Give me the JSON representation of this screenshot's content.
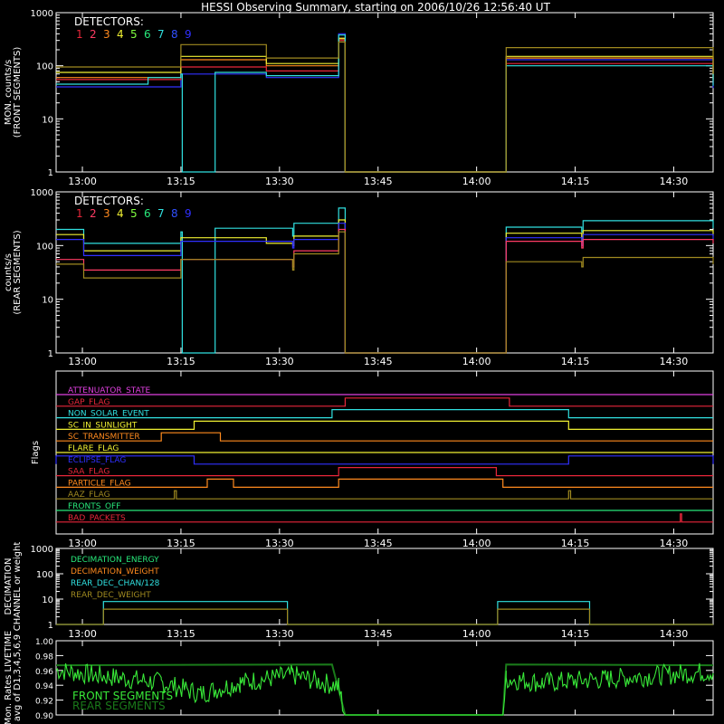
{
  "title": "HESSI Observing Summary, starting on 2006/10/26 12:56:40 UT",
  "colors": {
    "det1": "#e8263a",
    "det2": "#ff3c64",
    "det3": "#ff8a1e",
    "det4": "#f0f032",
    "det5": "#80ff40",
    "det6": "#28e87a",
    "det7": "#30e0e0",
    "det8": "#3050ff",
    "det9": "#3030ff",
    "olive": "#a08a20",
    "magenta": "#e040e0",
    "fuzz": "#38e838",
    "rear": "#1a7a1a"
  },
  "x_ticks": [
    "13:00",
    "13:15",
    "13:30",
    "13:45",
    "14:00",
    "14:15",
    "14:30"
  ],
  "chart_data": [
    {
      "type": "line",
      "ylabel": [
        "MON. counts/s",
        "(FRONT SEGMENTS)"
      ],
      "yscale": "log",
      "ylim": [
        1,
        1000
      ],
      "y_ticks": [
        "1000",
        "100",
        "10",
        "1"
      ],
      "legend_title": "DETECTORS:",
      "legend_digits": [
        "1",
        "2",
        "3",
        "4",
        "5",
        "6",
        "7",
        "8",
        "9"
      ],
      "series": [
        {
          "name": "9",
          "color_key": "det9",
          "x": [
            "12:56",
            "13:15",
            "13:28",
            "13:39",
            "13:40",
            "14:04",
            "14:04.5",
            "14:36"
          ],
          "y": [
            40,
            70,
            60,
            400,
            1,
            1,
            130,
            38
          ]
        },
        {
          "name": "1",
          "color_key": "det1",
          "x": [
            "12:56",
            "13:15",
            "13:28",
            "13:39",
            "13:40",
            "14:04",
            "14:04.5",
            "14:36"
          ],
          "y": [
            55,
            95,
            80,
            300,
            1,
            1,
            110,
            45
          ]
        },
        {
          "name": "3",
          "color_key": "det3",
          "x": [
            "12:56",
            "13:15",
            "13:28",
            "13:39",
            "13:40",
            "14:04",
            "14:04.5",
            "14:36"
          ],
          "y": [
            60,
            130,
            100,
            320,
            1,
            1,
            140,
            50
          ]
        },
        {
          "name": "4",
          "color_key": "det4",
          "x": [
            "12:56",
            "13:15",
            "13:28",
            "13:39",
            "13:40",
            "14:04",
            "14:04.5",
            "14:36"
          ],
          "y": [
            75,
            150,
            110,
            330,
            1,
            1,
            150,
            55
          ]
        },
        {
          "name": "7",
          "color_key": "det7",
          "x": [
            "12:56",
            "13:10",
            "13:15",
            "13:15.2",
            "13:20",
            "13:20.2",
            "13:28",
            "13:39",
            "13:40",
            "14:04",
            "14:04.5",
            "14:36"
          ],
          "y": [
            45,
            60,
            70,
            1,
            1,
            75,
            65,
            380,
            1,
            1,
            100,
            42
          ]
        },
        {
          "name": "olive",
          "color_key": "olive",
          "x": [
            "12:56",
            "13:15",
            "13:28",
            "13:39",
            "13:40",
            "14:04",
            "14:04.5",
            "14:36"
          ],
          "y": [
            95,
            250,
            140,
            280,
            1,
            1,
            220,
            70
          ]
        }
      ]
    },
    {
      "type": "line",
      "ylabel": [
        "counts/s",
        "(REAR SEGMENTS)"
      ],
      "yscale": "log",
      "ylim": [
        1,
        1000
      ],
      "y_ticks": [
        "1000",
        "100",
        "10",
        "1"
      ],
      "legend_title": "DETECTORS:",
      "legend_digits": [
        "1",
        "2",
        "3",
        "4",
        "5",
        "6",
        "7",
        "8",
        "9"
      ],
      "series": [
        {
          "name": "7",
          "color_key": "det7",
          "x": [
            "12:56",
            "13:00",
            "13:00.2",
            "13:15",
            "13:15.2",
            "13:20",
            "13:20.2",
            "13:32",
            "13:32.2",
            "13:39",
            "13:40",
            "14:04",
            "14:04.5",
            "14:16",
            "14:16.2",
            "14:36"
          ],
          "y": [
            200,
            200,
            110,
            180,
            1,
            1,
            210,
            150,
            260,
            500,
            1,
            1,
            220,
            180,
            290,
            210
          ]
        },
        {
          "name": "4",
          "color_key": "det4",
          "x": [
            "12:56",
            "13:00",
            "13:00.2",
            "13:15",
            "13:28",
            "13:32",
            "13:32.2",
            "13:39",
            "13:40",
            "14:04",
            "14:04.5",
            "14:16",
            "14:16.2",
            "14:36"
          ],
          "y": [
            160,
            160,
            80,
            140,
            110,
            100,
            150,
            300,
            1,
            1,
            170,
            120,
            190,
            150
          ]
        },
        {
          "name": "9",
          "color_key": "det9",
          "x": [
            "12:56",
            "13:00",
            "13:00.2",
            "13:15",
            "13:32",
            "13:32.2",
            "13:39",
            "13:40",
            "14:04",
            "14:04.5",
            "14:16",
            "14:16.2",
            "14:36"
          ],
          "y": [
            130,
            130,
            65,
            120,
            90,
            130,
            260,
            1,
            1,
            140,
            100,
            160,
            130
          ]
        },
        {
          "name": "2",
          "color_key": "det2",
          "x": [
            "12:56",
            "13:00",
            "13:00.2",
            "13:15",
            "13:32",
            "13:32.2",
            "13:39",
            "13:40",
            "14:04",
            "14:04.5",
            "14:16",
            "14:16.2",
            "14:36"
          ],
          "y": [
            55,
            55,
            35,
            55,
            40,
            80,
            200,
            1,
            1,
            120,
            90,
            130,
            110
          ]
        },
        {
          "name": "olive",
          "color_key": "olive",
          "x": [
            "12:56",
            "13:00",
            "13:00.2",
            "13:15",
            "13:32",
            "13:32.2",
            "13:39",
            "13:40",
            "14:04",
            "14:04.5",
            "14:16",
            "14:16.2",
            "14:36"
          ],
          "y": [
            45,
            45,
            25,
            55,
            35,
            70,
            180,
            1,
            1,
            50,
            40,
            60,
            45
          ]
        }
      ]
    },
    {
      "type": "line",
      "ylabel": [
        "Flags"
      ],
      "flags": [
        {
          "label": "ATTENUATOR_STATE",
          "color_key": "magenta",
          "high_ranges": []
        },
        {
          "label": "GAP_FLAG",
          "color_key": "det1",
          "high_ranges": [
            [
              "13:40",
              "14:05"
            ]
          ]
        },
        {
          "label": "NON_SOLAR_EVENT",
          "color_key": "det7",
          "high_ranges": [
            [
              "13:38",
              "14:14"
            ]
          ]
        },
        {
          "label": "SC_IN_SUNLIGHT",
          "color_key": "det4",
          "high_ranges": [
            [
              "13:17",
              "14:14"
            ]
          ]
        },
        {
          "label": "SC_TRANSMITTER",
          "color_key": "det3",
          "high_ranges": [
            [
              "13:12",
              "13:21"
            ]
          ]
        },
        {
          "label": "FLARE_FLAG",
          "color_key": "det4",
          "high_ranges": []
        },
        {
          "label": "ECLIPSE_FLAG",
          "color_key": "det9",
          "high_ranges": [
            [
              "12:56",
              "13:17"
            ],
            [
              "14:14",
              "14:36"
            ]
          ]
        },
        {
          "label": "SAA_FLAG",
          "color_key": "det1",
          "high_ranges": [
            [
              "13:39",
              "14:03"
            ]
          ]
        },
        {
          "label": "PARTICLE_FLAG",
          "color_key": "det3",
          "high_ranges": [
            [
              "13:19",
              "13:23"
            ],
            [
              "13:39",
              "14:04"
            ]
          ]
        },
        {
          "label": "AAZ_FLAG",
          "color_key": "olive",
          "high_ranges": [
            [
              "13:14",
              "13:14.3"
            ],
            [
              "14:14",
              "14:14.3"
            ]
          ]
        },
        {
          "label": "FRONTS_OFF",
          "color_key": "det6",
          "high_ranges": []
        },
        {
          "label": "BAD_PACKETS",
          "color_key": "det1",
          "high_ranges": [
            [
              "14:31",
              "14:31.2"
            ]
          ]
        }
      ]
    },
    {
      "type": "line",
      "ylabel": [
        "DECIMATION",
        "CHANNEL or weight"
      ],
      "yscale": "log",
      "ylim": [
        1,
        1000
      ],
      "y_ticks": [
        "1000",
        "100",
        "10",
        "1"
      ],
      "legend_items": [
        {
          "name": "DECIMATION_ENERGY",
          "color_key": "det6"
        },
        {
          "name": "DECIMATION_WEIGHT",
          "color_key": "det3"
        },
        {
          "name": "REAR_DEC_CHAN/128",
          "color_key": "det7"
        },
        {
          "name": "REAR_DEC_WEIGHT",
          "color_key": "olive"
        }
      ],
      "series": [
        {
          "name": "REAR_DEC_CHAN/128",
          "color_key": "det7",
          "x": [
            "12:56",
            "13:03",
            "13:03.2",
            "13:31",
            "13:31.2",
            "14:03",
            "14:03.2",
            "14:17",
            "14:17.2",
            "14:36"
          ],
          "y": [
            1,
            1,
            8,
            8,
            1,
            1,
            8,
            8,
            1,
            1
          ]
        },
        {
          "name": "REAR_DEC_WEIGHT",
          "color_key": "olive",
          "x": [
            "12:56",
            "13:03",
            "13:03.2",
            "13:31",
            "13:31.2",
            "14:03",
            "14:03.2",
            "14:17",
            "14:17.2",
            "14:36"
          ],
          "y": [
            1,
            1,
            4,
            4,
            1,
            1,
            4,
            4,
            1,
            1
          ]
        }
      ]
    },
    {
      "type": "line",
      "ylabel": [
        "Mon. Rates LIVETIME",
        "avg of D1,3,4,5,6,9"
      ],
      "ylim": [
        0.9,
        1.0
      ],
      "y_ticks": [
        "1.00",
        "0.98",
        "0.96",
        "0.94",
        "0.92",
        "0.90"
      ],
      "legend_items": [
        {
          "name": "FRONT SEGMENTS",
          "color_key": "fuzz"
        },
        {
          "name": "REAR SEGMENTS",
          "color_key": "rear"
        }
      ],
      "series": [
        {
          "name": "REAR SEGMENTS",
          "color_key": "rear",
          "x": [
            "12:56",
            "13:38",
            "13:40",
            "14:04",
            "14:04.5",
            "14:36"
          ],
          "y": [
            0.967,
            0.968,
            0.9,
            0.9,
            0.968,
            0.967
          ]
        },
        {
          "name": "FRONT SEGMENTS",
          "color_key": "fuzz",
          "x": [
            "12:56",
            "13:02",
            "13:12",
            "13:18",
            "13:24",
            "13:32",
            "13:39",
            "13:40",
            "14:04",
            "14:04.5",
            "14:10",
            "14:20",
            "14:36"
          ],
          "y": [
            0.962,
            0.955,
            0.945,
            0.93,
            0.945,
            0.955,
            0.94,
            0.9,
            0.9,
            0.95,
            0.945,
            0.95,
            0.96
          ]
        }
      ]
    }
  ]
}
